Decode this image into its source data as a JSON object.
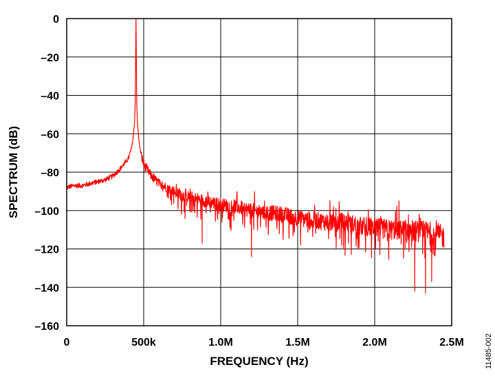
{
  "chart_data": {
    "type": "line",
    "title": "",
    "xlabel": "FREQUENCY (Hz)",
    "ylabel": "SPECTRUM (dB)",
    "xlim": [
      0,
      2500000
    ],
    "ylim": [
      -160,
      0
    ],
    "x_ticks": [
      {
        "value": 0,
        "label": "0"
      },
      {
        "value": 500000,
        "label": "500k"
      },
      {
        "value": 1000000,
        "label": "1.0M"
      },
      {
        "value": 1500000,
        "label": "1.5M"
      },
      {
        "value": 2000000,
        "label": "2.0M"
      },
      {
        "value": 2500000,
        "label": "2.5M"
      }
    ],
    "y_ticks": [
      {
        "value": 0,
        "label": "0"
      },
      {
        "value": -20,
        "label": "–20"
      },
      {
        "value": -40,
        "label": "–40"
      },
      {
        "value": -60,
        "label": "–60"
      },
      {
        "value": -80,
        "label": "–80"
      },
      {
        "value": -100,
        "label": "–100"
      },
      {
        "value": -120,
        "label": "–120"
      },
      {
        "value": -140,
        "label": "–140"
      },
      {
        "value": -160,
        "label": "–160"
      }
    ],
    "grid": true,
    "legend": "none",
    "series": [
      {
        "color": "#ff0000",
        "x": [
          0,
          50000,
          100000,
          150000,
          200000,
          250000,
          300000,
          350000,
          400000,
          420000,
          430000,
          440000,
          445000,
          450000,
          455000,
          460000,
          470000,
          480000,
          500000,
          550000,
          600000,
          650000,
          700000,
          750000,
          800000,
          900000,
          1000000,
          1100000,
          1200000,
          1300000,
          1400000,
          1500000,
          1600000,
          1700000,
          1800000,
          1900000,
          2000000,
          2100000,
          2200000,
          2300000,
          2400000,
          2450000
        ],
        "y": [
          -88,
          -87,
          -87,
          -86,
          -85,
          -84,
          -82,
          -78,
          -73,
          -68,
          -63,
          -55,
          -45,
          0,
          -45,
          -55,
          -64,
          -70,
          -76,
          -82,
          -86,
          -88,
          -90,
          -92,
          -93,
          -95,
          -97,
          -98,
          -100,
          -101,
          -102,
          -104,
          -105,
          -106,
          -106,
          -108,
          -109,
          -110,
          -110,
          -111,
          -112,
          -114
        ]
      }
    ],
    "notable_dips": [
      {
        "x": 880000,
        "y": -117
      },
      {
        "x": 1200000,
        "y": -124
      },
      {
        "x": 1830000,
        "y": -117
      },
      {
        "x": 2260000,
        "y": -142
      },
      {
        "x": 2330000,
        "y": -143
      },
      {
        "x": 2370000,
        "y": -137
      }
    ]
  },
  "figure_id": "11485-002",
  "colors": {
    "series": "#ff0000",
    "grid": "#000000",
    "background": "#ffffff"
  }
}
